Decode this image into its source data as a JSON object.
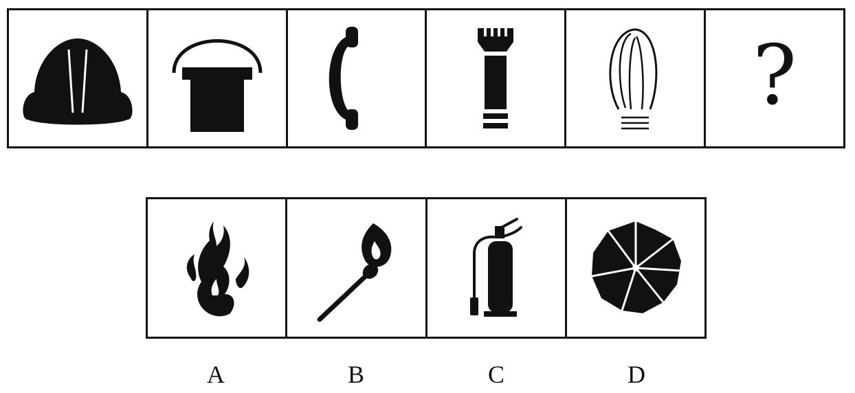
{
  "sequence": {
    "items": [
      {
        "icon": "hard-hat-icon"
      },
      {
        "icon": "bucket-icon"
      },
      {
        "icon": "telephone-handset-icon"
      },
      {
        "icon": "flashlight-icon"
      },
      {
        "icon": "light-bulb-icon"
      },
      {
        "icon": "question-mark-icon",
        "text": "?"
      }
    ]
  },
  "options": {
    "items": [
      {
        "label": "A",
        "icon": "flames-icon"
      },
      {
        "label": "B",
        "icon": "burning-match-icon"
      },
      {
        "label": "C",
        "icon": "fire-extinguisher-icon"
      },
      {
        "label": "D",
        "icon": "umbrella-icon"
      }
    ]
  },
  "colors": {
    "ink": "#111111",
    "background": "#ffffff"
  }
}
